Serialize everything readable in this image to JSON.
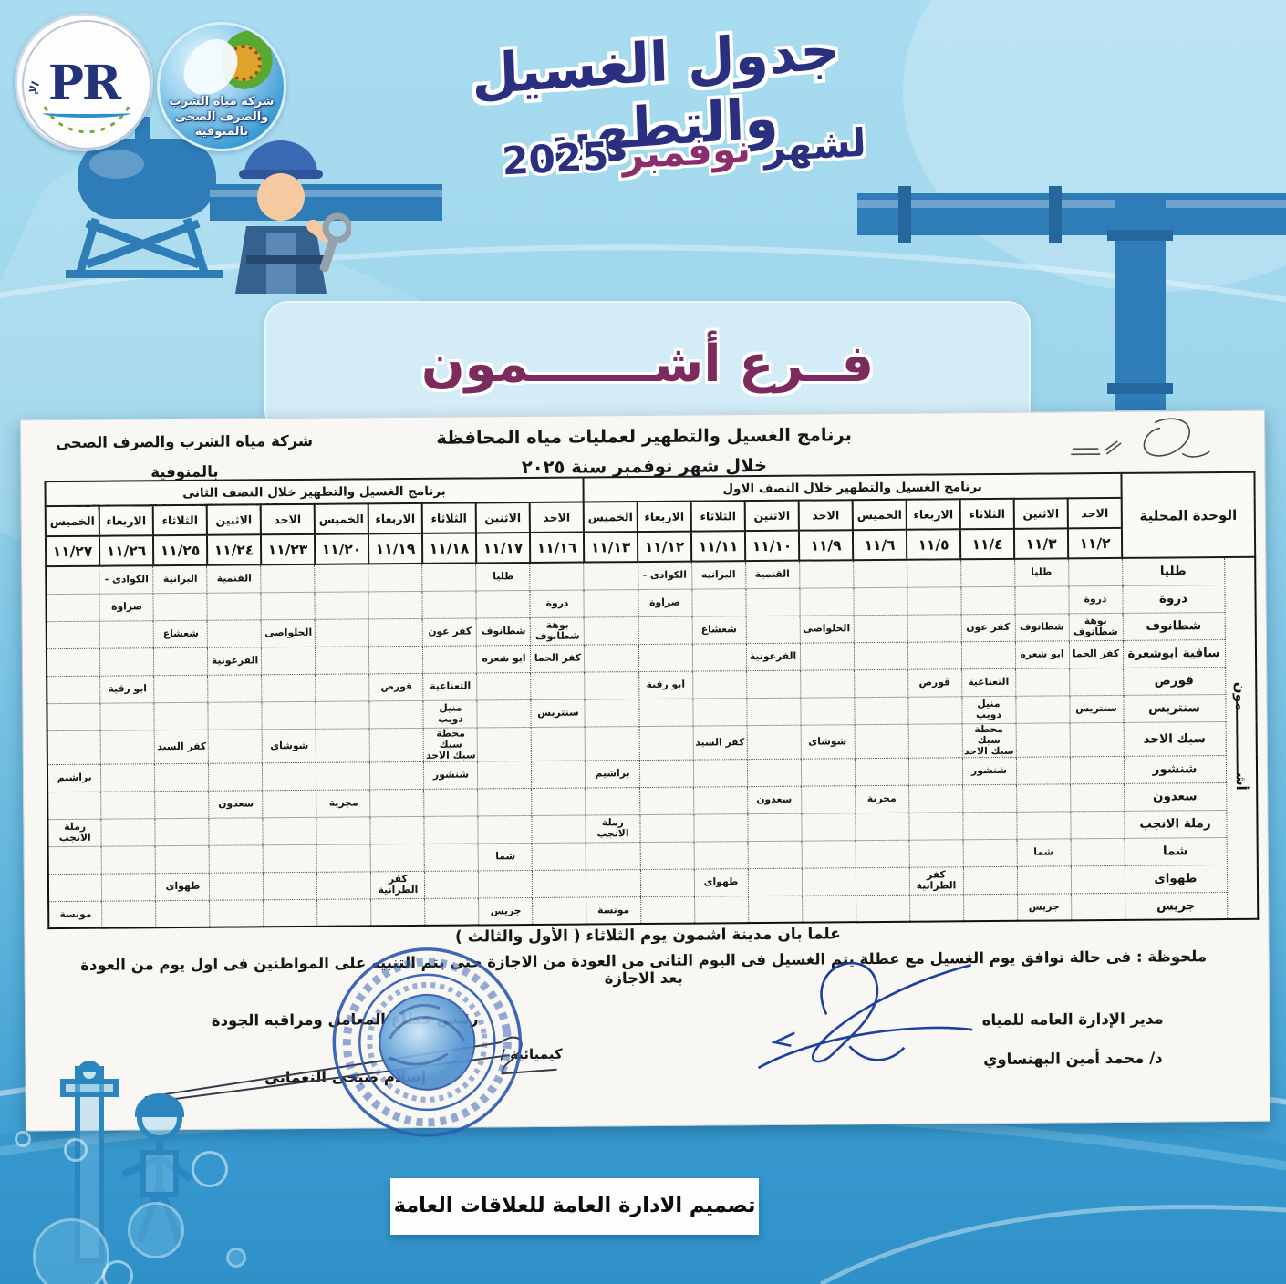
{
  "poster": {
    "title": "جدول الغسيل والتطهير",
    "subtitle": {
      "prefix": "لشهر",
      "month": "نوفمبر",
      "year": "2025"
    },
    "branch": "فــرع أشـــــــمون",
    "credit": "تصميم الادارة العامة للعلاقات العامة"
  },
  "logos": {
    "company": {
      "line1": "شركة مياه الشرب",
      "line2": "والصرف الصحى بالمنوفية"
    },
    "pr": {
      "abbr": "PR",
      "ring_top": "الإدارة العامة للعلاقات العامة"
    }
  },
  "document": {
    "company_name": "شركة مياه الشرب والصرف الصحى بالمنوفية",
    "sector": "قطاع المعامل ومراقبة الجودة",
    "program_title": "برنامج الغسيل والتطهير لعمليات مياه المحافظة",
    "program_period": "خلال شهر نوفمبر سنة ٢٠٢٥",
    "notes": {
      "city": "علما بان مدينة اشمون يوم الثلاثاء ( الأول والثالث )",
      "holiday": "ملحوظة : فى حالة توافق يوم الغسيل مع عطلة يتم الغسيل فى اليوم الثانى من العودة من الاجازة حتى يتم التنبيه على المواطنين فى اول يوم من العودة بعد الاجازة"
    },
    "signatures": {
      "right_title": "مدير الإدارة العامه للمياه",
      "right_name": "د/ محمد أمين البهنساوي",
      "left_title": "رئيس قطاع المعامل ومراقبه الجودة",
      "left_role": "كيميائية /",
      "left_name": "إسلام صبحى النعمانى"
    },
    "table": {
      "unit_header": "الوحدة المحلية",
      "half1_header": "برنامج الغسيل والتطهير خلال النصف الاول",
      "half2_header": "برنامج الغسيل والتطهير خلال النصف الثانى",
      "region_vertical": "أشـــــــــــــمون",
      "columns": [
        {
          "day": "الاحد",
          "date": "١١/٢"
        },
        {
          "day": "الاثنين",
          "date": "١١/٣"
        },
        {
          "day": "الثلاثاء",
          "date": "١١/٤"
        },
        {
          "day": "الاربعاء",
          "date": "١١/٥"
        },
        {
          "day": "الخميس",
          "date": "١١/٦"
        },
        {
          "day": "الاحد",
          "date": "١١/٩"
        },
        {
          "day": "الاثنين",
          "date": "١١/١٠"
        },
        {
          "day": "الثلاثاء",
          "date": "١١/١١"
        },
        {
          "day": "الاربعاء",
          "date": "١١/١٢"
        },
        {
          "day": "الخميس",
          "date": "١١/١٣"
        },
        {
          "day": "الاحد",
          "date": "١١/١٦"
        },
        {
          "day": "الاثنين",
          "date": "١١/١٧"
        },
        {
          "day": "الثلاثاء",
          "date": "١١/١٨"
        },
        {
          "day": "الاربعاء",
          "date": "١١/١٩"
        },
        {
          "day": "الخميس",
          "date": "١١/٢٠"
        },
        {
          "day": "الاحد",
          "date": "١١/٢٣"
        },
        {
          "day": "الاثنين",
          "date": "١١/٢٤"
        },
        {
          "day": "الثلاثاء",
          "date": "١١/٢٥"
        },
        {
          "day": "الاربعاء",
          "date": "١١/٢٦"
        },
        {
          "day": "الخميس",
          "date": "١١/٢٧"
        }
      ],
      "rows": [
        {
          "unit": "طليا",
          "cells": [
            "",
            "طليا",
            "",
            "",
            "",
            "",
            "القنمية",
            "البرانيه",
            "الكوادى -",
            "",
            "",
            "طليا",
            "",
            "",
            "",
            "",
            "القنمية",
            "البرانية",
            "الكوادى -",
            ""
          ]
        },
        {
          "unit": "دروة",
          "cells": [
            "دروة",
            "",
            "",
            "",
            "",
            "",
            "",
            "",
            "صراوة",
            "",
            "دروة",
            "",
            "",
            "",
            "",
            "",
            "",
            "",
            "صراوة",
            ""
          ]
        },
        {
          "unit": "شطانوف",
          "cells": [
            "بوهة\nشطانوف",
            "شطانوف",
            "كفر عون",
            "",
            "",
            "الحلواصى",
            "",
            "شعشاع",
            "",
            "",
            "بوهة\nشطانوف",
            "شطانوف",
            "كفر عون",
            "",
            "",
            "الحلواصى",
            "",
            "شعشاع",
            "",
            ""
          ]
        },
        {
          "unit": "ساقية ابوشعرة",
          "cells": [
            "كفر الحما",
            "ابو شعره",
            "",
            "",
            "",
            "",
            "الفرعونية",
            "",
            "",
            "",
            "كفر الحما",
            "ابو شعره",
            "",
            "",
            "",
            "",
            "الفرعونية",
            "",
            "",
            ""
          ]
        },
        {
          "unit": "قورص",
          "cells": [
            "",
            "",
            "التعناعية",
            "قورص",
            "",
            "",
            "",
            "",
            "ابو رقية",
            "",
            "",
            "",
            "التعناعية",
            "قورص",
            "",
            "",
            "",
            "",
            "ابو رقية",
            ""
          ]
        },
        {
          "unit": "سنتريس",
          "cells": [
            "سنتريس",
            "",
            "منيل دويب",
            "",
            "",
            "",
            "",
            "",
            "",
            "",
            "سنتريس",
            "",
            "منيل دويب",
            "",
            "",
            "",
            "",
            "",
            "",
            ""
          ]
        },
        {
          "unit": "سبك الاحد",
          "cells": [
            "",
            "",
            "محطة سبك\nسبك الاحد",
            "",
            "",
            "شوشاى",
            "",
            "كفر السيد",
            "",
            "",
            "",
            "",
            "محطة سبك\nسبك الاحد",
            "",
            "",
            "شوشاى",
            "",
            "كفر السيد",
            "",
            ""
          ]
        },
        {
          "unit": "شنشور",
          "cells": [
            "",
            "",
            "شنشور",
            "",
            "",
            "",
            "",
            "",
            "",
            "براشيم",
            "",
            "",
            "شنشور",
            "",
            "",
            "",
            "",
            "",
            "",
            "براشيم"
          ]
        },
        {
          "unit": "سعدون",
          "cells": [
            "",
            "",
            "",
            "",
            "مجرية",
            "",
            "سعدون",
            "",
            "",
            "",
            "",
            "",
            "",
            "",
            "مجرية",
            "",
            "سعدون",
            "",
            "",
            ""
          ]
        },
        {
          "unit": "رملة الانجب",
          "cells": [
            "",
            "",
            "",
            "",
            "",
            "",
            "",
            "",
            "",
            "رملة\nالانجب",
            "",
            "",
            "",
            "",
            "",
            "",
            "",
            "",
            "",
            "رملة\nالانجب"
          ]
        },
        {
          "unit": "شما",
          "cells": [
            "",
            "شما",
            "",
            "",
            "",
            "",
            "",
            "",
            "",
            "",
            "",
            "شما",
            "",
            "",
            "",
            "",
            "",
            "",
            "",
            ""
          ]
        },
        {
          "unit": "طهواى",
          "cells": [
            "",
            "",
            "",
            "كفر\nالطرانية",
            "",
            "",
            "",
            "طهواى",
            "",
            "",
            "",
            "",
            "",
            "كفر\nالطرانية",
            "",
            "",
            "",
            "طهواى",
            "",
            ""
          ]
        },
        {
          "unit": "جريس",
          "cells": [
            "",
            "جريس",
            "",
            "",
            "",
            "",
            "",
            "",
            "",
            "مونسة",
            "",
            "جريس",
            "",
            "",
            "",
            "",
            "",
            "",
            "",
            "مونسة"
          ]
        }
      ]
    }
  }
}
